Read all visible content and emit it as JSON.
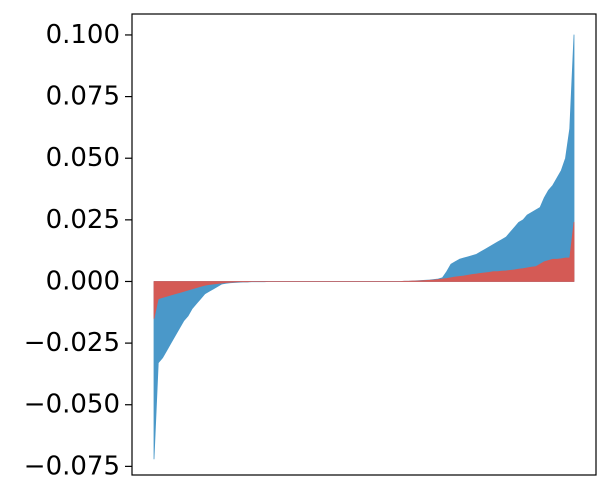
{
  "chart_data": {
    "type": "area",
    "title": "",
    "xlabel": "",
    "ylabel": "",
    "ylim": [
      -0.0785,
      0.1085
    ],
    "grid": false,
    "legend": "none",
    "yticks": [
      {
        "value": 0.1,
        "label": "0.100"
      },
      {
        "value": 0.075,
        "label": "0.075"
      },
      {
        "value": 0.05,
        "label": "0.050"
      },
      {
        "value": 0.025,
        "label": "0.025"
      },
      {
        "value": 0.0,
        "label": "0.000"
      },
      {
        "value": -0.025,
        "label": "−0.025"
      },
      {
        "value": -0.05,
        "label": "−0.050"
      },
      {
        "value": -0.075,
        "label": "−0.075"
      }
    ],
    "series": [
      {
        "color": "#4a98c9",
        "x": [
          1,
          2,
          3,
          4,
          5,
          6,
          7,
          8,
          9,
          10,
          11,
          12,
          13,
          14,
          15,
          16,
          17,
          18,
          19,
          20,
          21,
          22,
          23,
          24,
          25,
          26,
          27,
          28,
          29,
          30,
          31,
          32,
          33,
          34,
          35,
          36,
          37,
          38,
          39,
          40,
          41,
          42,
          43,
          44,
          45,
          46,
          47,
          48,
          49,
          50,
          51,
          52,
          53,
          54,
          55,
          56,
          57,
          58,
          59,
          60,
          61,
          62,
          63,
          64,
          65,
          66,
          67,
          68,
          69,
          70,
          71,
          72,
          73,
          74,
          75,
          76,
          77,
          78,
          79,
          80,
          81,
          82,
          83,
          84,
          85,
          86,
          87,
          88,
          89,
          90,
          91,
          92,
          93,
          94,
          95,
          96,
          97,
          98,
          99,
          100
        ],
        "values": [
          -0.072,
          -0.033,
          -0.031,
          -0.028,
          -0.025,
          -0.022,
          -0.019,
          -0.016,
          -0.014,
          -0.011,
          -0.009,
          -0.007,
          -0.005,
          -0.004,
          -0.003,
          -0.002,
          -0.001,
          -0.0007,
          -0.0005,
          -0.0004,
          -0.0003,
          -0.0002,
          -0.0002,
          -0.0001,
          -0.0001,
          -0.0001,
          -0.0001,
          0,
          0,
          0,
          0,
          0,
          0,
          0,
          0,
          0,
          0,
          0,
          0,
          0,
          0,
          0,
          0,
          0,
          0,
          0,
          0,
          0,
          0,
          0,
          0,
          0,
          0,
          0,
          0,
          0,
          0,
          0,
          0,
          0.0001,
          0.0001,
          0.0002,
          0.0003,
          0.0004,
          0.0005,
          0.0006,
          0.0008,
          0.001,
          0.0015,
          0.004,
          0.007,
          0.008,
          0.009,
          0.0095,
          0.01,
          0.0105,
          0.011,
          0.012,
          0.013,
          0.014,
          0.015,
          0.016,
          0.017,
          0.018,
          0.02,
          0.022,
          0.024,
          0.025,
          0.027,
          0.028,
          0.029,
          0.03,
          0.034,
          0.037,
          0.039,
          0.042,
          0.045,
          0.05,
          0.062,
          0.1
        ]
      },
      {
        "color": "#d45a55",
        "x": [
          1,
          2,
          3,
          4,
          5,
          6,
          7,
          8,
          9,
          10,
          11,
          12,
          13,
          14,
          15,
          16,
          17,
          18,
          19,
          20,
          21,
          22,
          23,
          24,
          25,
          26,
          27,
          28,
          29,
          30,
          31,
          32,
          33,
          34,
          35,
          36,
          37,
          38,
          39,
          40,
          41,
          42,
          43,
          44,
          45,
          46,
          47,
          48,
          49,
          50,
          51,
          52,
          53,
          54,
          55,
          56,
          57,
          58,
          59,
          60,
          61,
          62,
          63,
          64,
          65,
          66,
          67,
          68,
          69,
          70,
          71,
          72,
          73,
          74,
          75,
          76,
          77,
          78,
          79,
          80,
          81,
          82,
          83,
          84,
          85,
          86,
          87,
          88,
          89,
          90,
          91,
          92,
          93,
          94,
          95,
          96,
          97,
          98,
          99,
          100
        ],
        "values": [
          -0.015,
          -0.007,
          -0.0065,
          -0.006,
          -0.0055,
          -0.005,
          -0.0045,
          -0.004,
          -0.0035,
          -0.003,
          -0.0025,
          -0.002,
          -0.0015,
          -0.0012,
          -0.001,
          -0.0008,
          -0.0006,
          -0.0004,
          -0.0003,
          -0.0002,
          -0.0001,
          -0.0001,
          -0.0001,
          0,
          0,
          0,
          0,
          0,
          0,
          0,
          0,
          0,
          0,
          0,
          0,
          0,
          0,
          0,
          0,
          0,
          0,
          0,
          0,
          0,
          0,
          0,
          0,
          0,
          0,
          0,
          0,
          0,
          0,
          0,
          0,
          0,
          0,
          0,
          0,
          0.0001,
          0.0001,
          0.0002,
          0.0002,
          0.0003,
          0.0004,
          0.0005,
          0.0006,
          0.0008,
          0.001,
          0.0012,
          0.0015,
          0.0018,
          0.002,
          0.0022,
          0.0025,
          0.0028,
          0.003,
          0.0033,
          0.0035,
          0.0037,
          0.004,
          0.004,
          0.0042,
          0.0043,
          0.0045,
          0.0047,
          0.005,
          0.0052,
          0.0055,
          0.0058,
          0.006,
          0.007,
          0.008,
          0.0085,
          0.009,
          0.009,
          0.0092,
          0.0095,
          0.0095,
          0.024
        ]
      }
    ]
  }
}
